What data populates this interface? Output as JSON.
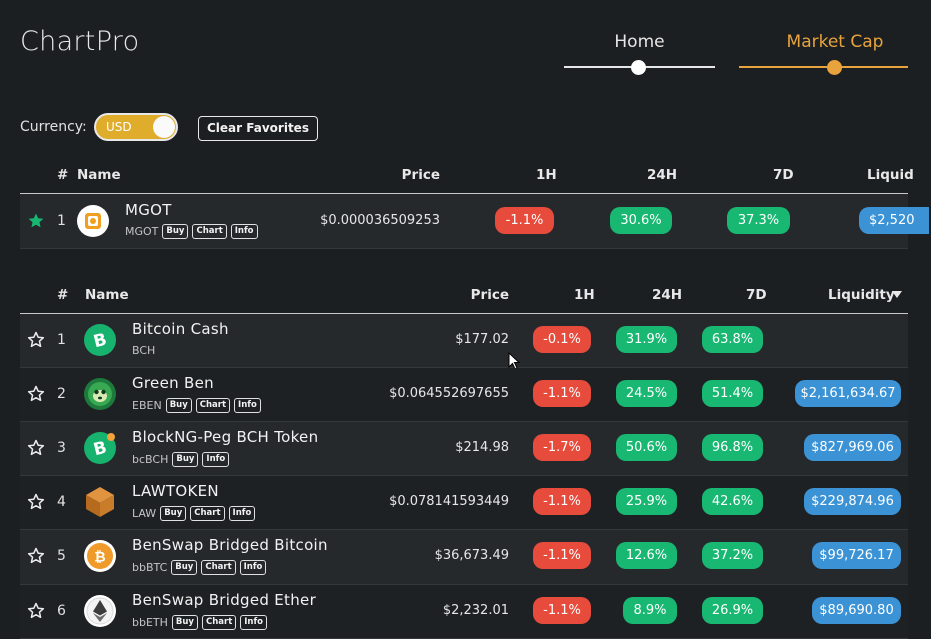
{
  "app": {
    "title": "ChartPro"
  },
  "nav": {
    "items": [
      {
        "label": "Home"
      },
      {
        "label": "Market Cap"
      }
    ]
  },
  "colors": {
    "accent": "#e8a33d",
    "red": "#e64b3c",
    "green": "#18b872",
    "blue": "#3b93d6",
    "toggle": "#e0ac2c"
  },
  "controls": {
    "currency_label": "Currency:",
    "currency_value": "USD",
    "clear_favorites": "Clear Favorites"
  },
  "favorites_table": {
    "headers": {
      "rank": "#",
      "name": "Name",
      "price": "Price",
      "h1": "1H",
      "h24": "24H",
      "d7": "7D",
      "liquidity": "Liquid"
    },
    "rows": [
      {
        "rank": "1",
        "name": "MGOT",
        "symbol": "MGOT",
        "price": "$0.000036509253",
        "h1": "-1.1%",
        "h24": "30.6%",
        "d7": "37.3%",
        "liquidity": "$2,520",
        "favorite": true,
        "icon": "mgot-icon"
      }
    ]
  },
  "main_table": {
    "headers": {
      "rank": "#",
      "name": "Name",
      "price": "Price",
      "h1": "1H",
      "h24": "24H",
      "d7": "7D",
      "liquidity": "Liquidity"
    },
    "tags": {
      "buy": "Buy",
      "chart": "Chart",
      "info": "Info"
    },
    "rows": [
      {
        "rank": "1",
        "name": "Bitcoin Cash",
        "symbol": "BCH",
        "price": "$177.02",
        "h1": "-0.1%",
        "h24": "31.9%",
        "d7": "63.8%",
        "liquidity": "",
        "icon": "bitcoin-cash-icon"
      },
      {
        "rank": "2",
        "name": "Green Ben",
        "symbol": "EBEN",
        "price": "$0.064552697655",
        "h1": "-1.1%",
        "h24": "24.5%",
        "d7": "51.4%",
        "liquidity": "$2,161,634.67",
        "icon": "green-ben-icon"
      },
      {
        "rank": "3",
        "name": "BlockNG-Peg BCH Token",
        "symbol": "bcBCH",
        "price": "$214.98",
        "h1": "-1.7%",
        "h24": "50.6%",
        "d7": "96.8%",
        "liquidity": "$827,969.06",
        "icon": "bcbch-icon"
      },
      {
        "rank": "4",
        "name": "LAWTOKEN",
        "symbol": "LAW",
        "price": "$0.078141593449",
        "h1": "-1.1%",
        "h24": "25.9%",
        "d7": "42.6%",
        "liquidity": "$229,874.96",
        "icon": "lawtoken-icon"
      },
      {
        "rank": "5",
        "name": "BenSwap Bridged Bitcoin",
        "symbol": "bbBTC",
        "price": "$36,673.49",
        "h1": "-1.1%",
        "h24": "12.6%",
        "d7": "37.2%",
        "liquidity": "$99,726.17",
        "icon": "bbbtc-icon"
      },
      {
        "rank": "6",
        "name": "BenSwap Bridged Ether",
        "symbol": "bbETH",
        "price": "$2,232.01",
        "h1": "-1.1%",
        "h24": "8.9%",
        "d7": "26.9%",
        "liquidity": "$89,690.80",
        "icon": "bbeth-icon"
      }
    ]
  }
}
